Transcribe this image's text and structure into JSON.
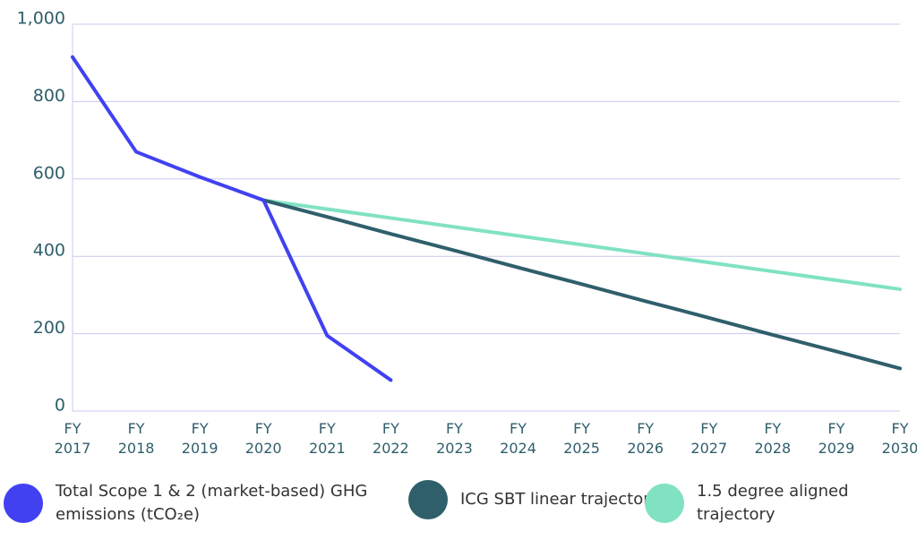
{
  "chart_data": {
    "type": "line",
    "categories": [
      "FY 2017",
      "FY 2018",
      "FY 2019",
      "FY 2020",
      "FY 2021",
      "FY 2022",
      "FY 2023",
      "FY 2024",
      "FY 2025",
      "FY 2026",
      "FY 2027",
      "FY 2028",
      "FY 2029",
      "FY 2030"
    ],
    "series": [
      {
        "name": "Total Scope 1 & 2 (market-based) GHG emissions (tCO₂e)",
        "color": "#4141f2",
        "values": [
          915,
          670,
          605,
          545,
          195,
          80,
          null,
          null,
          null,
          null,
          null,
          null,
          null,
          null
        ]
      },
      {
        "name": "ICG SBT linear trajectory",
        "color": "#2f5f6b",
        "values": [
          null,
          null,
          null,
          545,
          502,
          458,
          415,
          371,
          328,
          284,
          241,
          197,
          154,
          110
        ]
      },
      {
        "name": "1.5 degree aligned trajectory",
        "color": "#80e2c3",
        "values": [
          null,
          null,
          null,
          545,
          522,
          499,
          476,
          453,
          430,
          407,
          384,
          361,
          338,
          315
        ]
      }
    ],
    "ylim": [
      0,
      1000
    ],
    "yticks": [
      0,
      200,
      400,
      600,
      800,
      {
        "value": 1000,
        "label": "1,000"
      }
    ],
    "grid": true
  }
}
